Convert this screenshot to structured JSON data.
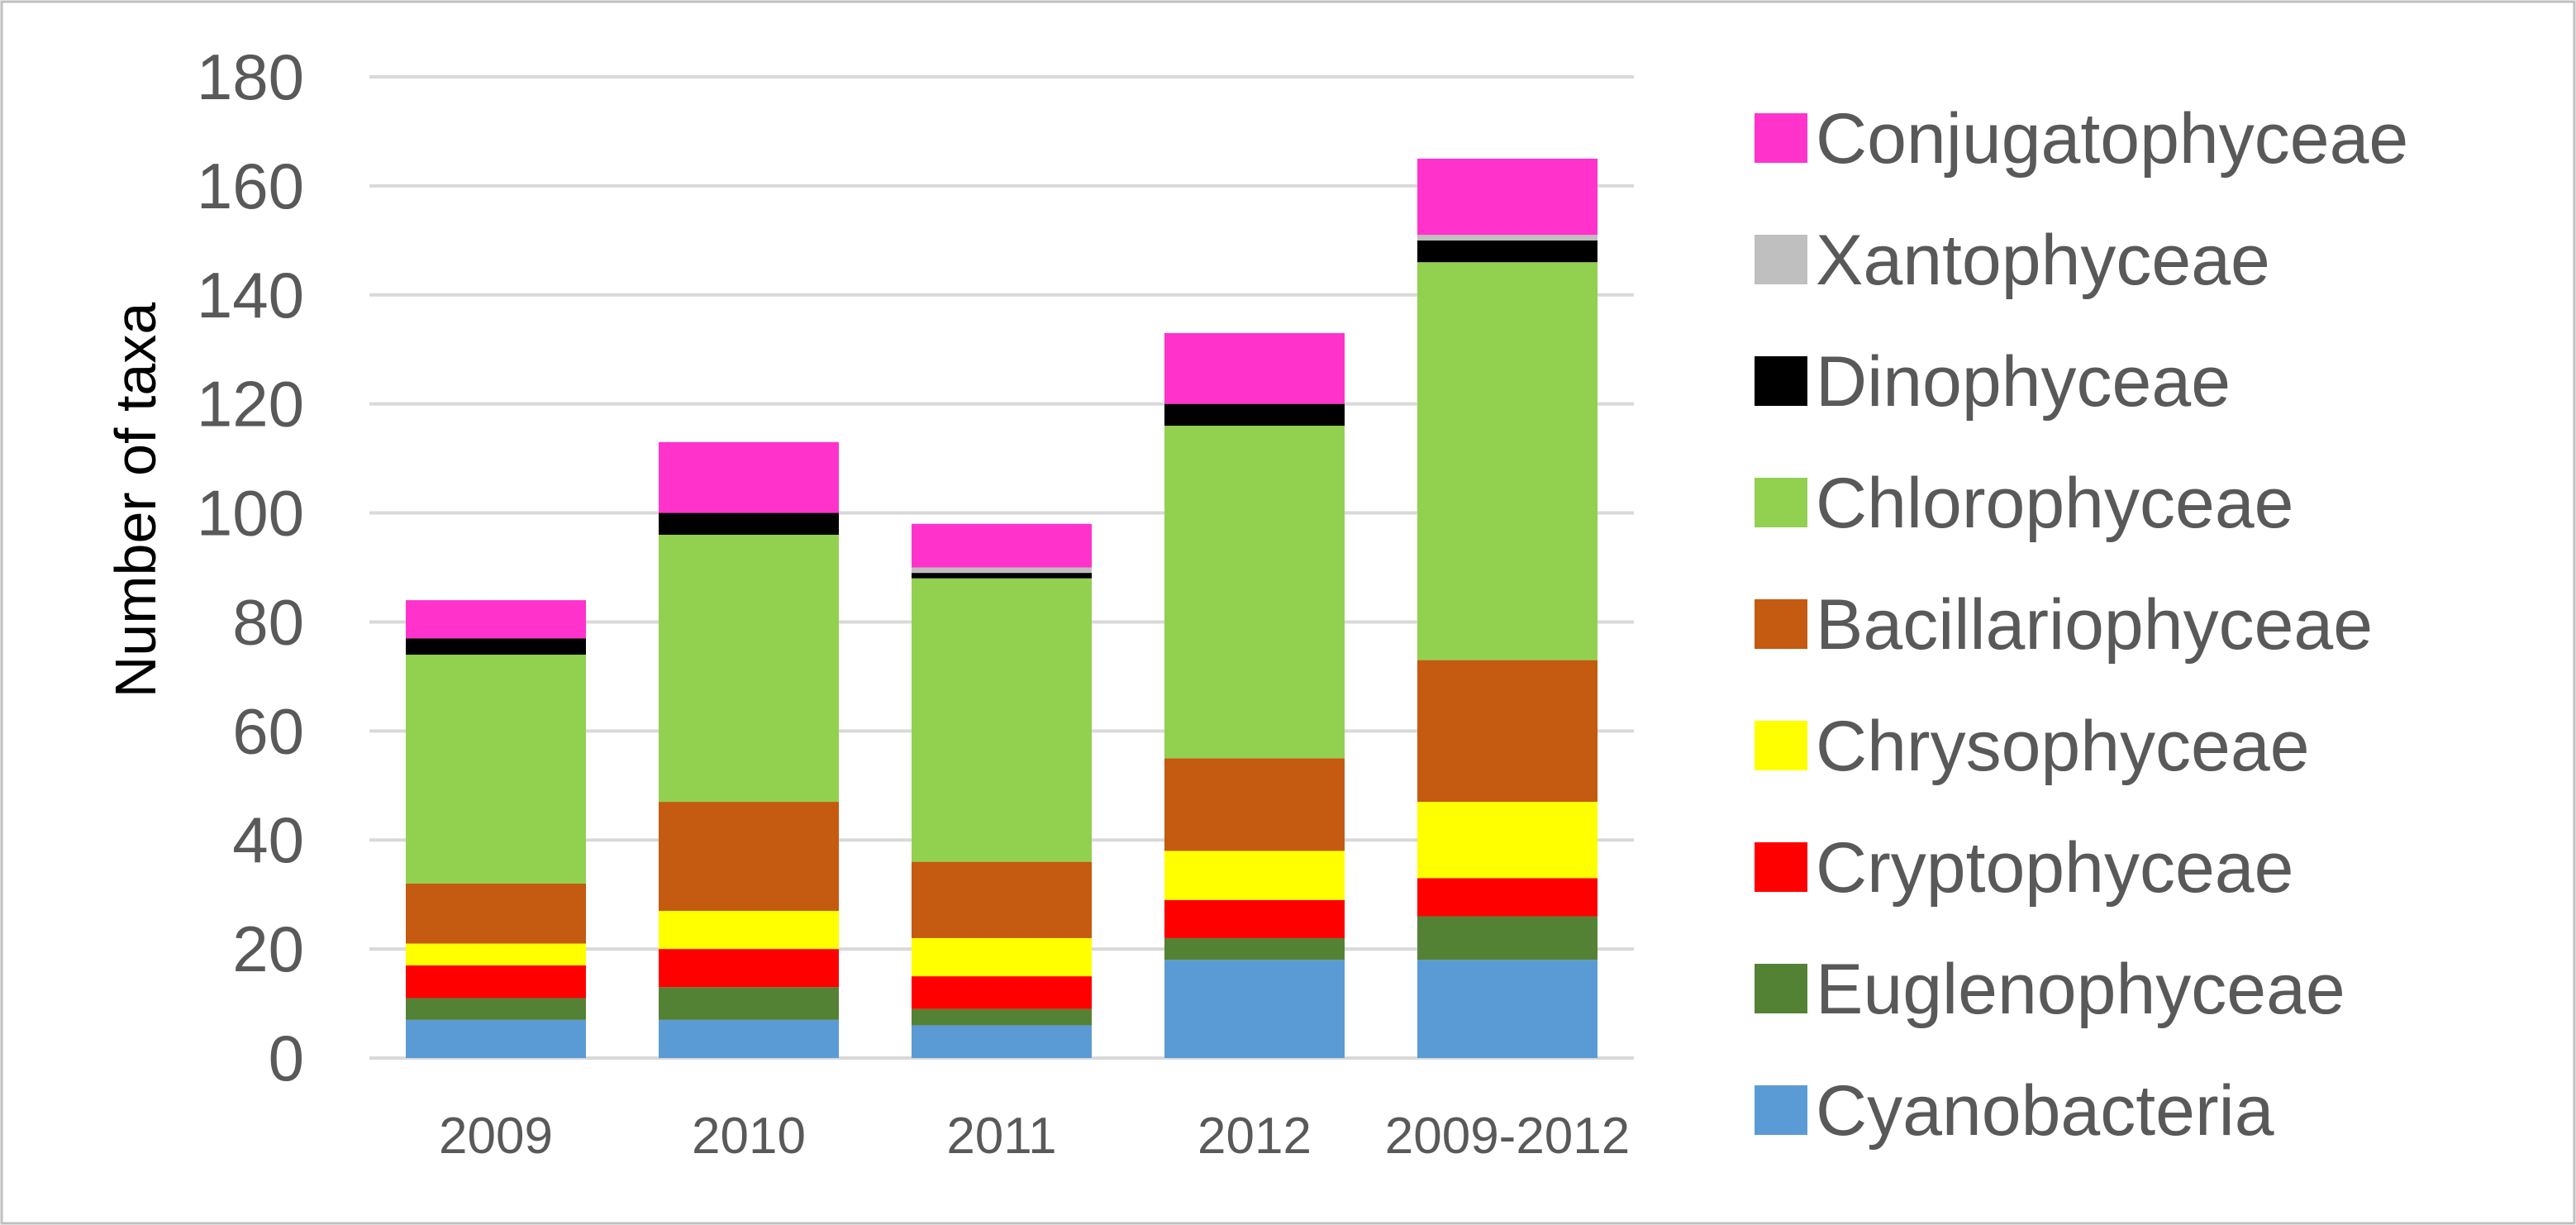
{
  "chart_data": {
    "type": "bar",
    "stacked": true,
    "title": "",
    "xlabel": "",
    "ylabel": "Number of taxa",
    "ylim": [
      0,
      180
    ],
    "yticks": [
      0,
      20,
      40,
      60,
      80,
      100,
      120,
      140,
      160,
      180
    ],
    "grid": true,
    "legend_position": "right",
    "categories": [
      "2009",
      "2010",
      "2011",
      "2012",
      "2009-2012"
    ],
    "series": [
      {
        "name": "Cyanobacteria",
        "color": "#5b9bd5",
        "values": [
          7,
          7,
          6,
          18,
          18
        ]
      },
      {
        "name": "Euglenophyceae",
        "color": "#548235",
        "values": [
          4,
          6,
          3,
          4,
          8
        ]
      },
      {
        "name": "Cryptophyceae",
        "color": "#ff0000",
        "values": [
          6,
          7,
          6,
          7,
          7
        ]
      },
      {
        "name": "Chrysophyceae",
        "color": "#ffff00",
        "values": [
          4,
          7,
          7,
          9,
          14
        ]
      },
      {
        "name": "Bacillariophyceae",
        "color": "#c55a11",
        "values": [
          11,
          20,
          14,
          17,
          26
        ]
      },
      {
        "name": "Chlorophyceae",
        "color": "#92d050",
        "values": [
          42,
          49,
          52,
          61,
          73
        ]
      },
      {
        "name": "Dinophyceae",
        "color": "#000000",
        "values": [
          3,
          4,
          1,
          4,
          4
        ]
      },
      {
        "name": "Xantophyceae",
        "color": "#bfbfbf",
        "values": [
          0,
          0,
          1,
          0,
          1
        ]
      },
      {
        "name": "Conjugatophyceae",
        "color": "#ff33cc",
        "values": [
          7,
          13,
          8,
          13,
          14
        ]
      }
    ]
  }
}
